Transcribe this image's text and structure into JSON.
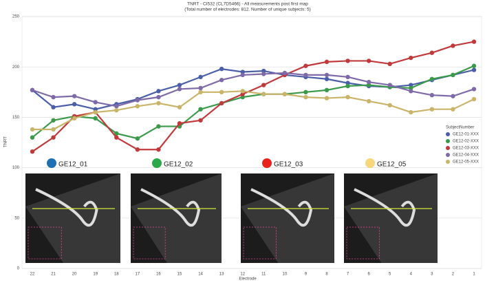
{
  "chart_data": {
    "type": "line",
    "title": "TNRT - CI532 (CL7D5466) - All measurements post first map",
    "subtitle": "(Total number of electrodes: 812. Number of unique subjects: 5)",
    "x_label": "Electrode",
    "y_label": "TNRT",
    "categories": [
      "22",
      "21",
      "20",
      "19",
      "18",
      "17",
      "16",
      "15",
      "14",
      "13",
      "12",
      "11",
      "10",
      "9",
      "8",
      "7",
      "6",
      "5",
      "4",
      "3",
      "2",
      "1"
    ],
    "ylim": [
      0,
      250
    ],
    "yticks": [
      0,
      50,
      100,
      150,
      200,
      250
    ],
    "grid": true,
    "legend_title": "SubjectNumber",
    "legend_position": "right",
    "series": [
      {
        "name": "GE12-01-XXX",
        "color": "#4a5fa8",
        "values": [
          177,
          160,
          163,
          158,
          163,
          168,
          176,
          182,
          190,
          198,
          195,
          196,
          192,
          190,
          188,
          184,
          181,
          180,
          182,
          187,
          192,
          197
        ]
      },
      {
        "name": "GE12-02-XXX",
        "color": "#3a9a4a",
        "values": [
          130,
          147,
          151,
          149,
          134,
          129,
          141,
          141,
          158,
          164,
          170,
          173,
          173,
          175,
          177,
          181,
          182,
          180,
          179,
          188,
          192,
          201
        ]
      },
      {
        "name": "GE12-03-XXX",
        "color": "#c0393b",
        "values": [
          116,
          130,
          151,
          155,
          130,
          118,
          118,
          144,
          147,
          164,
          173,
          182,
          192,
          201,
          205,
          206,
          206,
          203,
          209,
          214,
          221,
          225
        ]
      },
      {
        "name": "GE12-04-XXX",
        "color": "#7e6aa8",
        "values": [
          177,
          170,
          171,
          165,
          161,
          167,
          170,
          178,
          179,
          187,
          192,
          193,
          194,
          192,
          192,
          190,
          185,
          182,
          176,
          172,
          171,
          178
        ]
      },
      {
        "name": "GE12-05-XXX",
        "color": "#c9b46a",
        "values": [
          138,
          138,
          149,
          155,
          157,
          161,
          164,
          160,
          175,
          175,
          176,
          173,
          173,
          170,
          169,
          170,
          166,
          162,
          155,
          158,
          158,
          168
        ]
      }
    ],
    "image_labels": [
      {
        "label": "GE12_01",
        "color": "#1f6fb5"
      },
      {
        "label": "GE12_02",
        "color": "#2aa84a"
      },
      {
        "label": "GE12_03",
        "color": "#e8221c"
      },
      {
        "label": "GE12_05",
        "color": "#f7d77a"
      }
    ]
  }
}
